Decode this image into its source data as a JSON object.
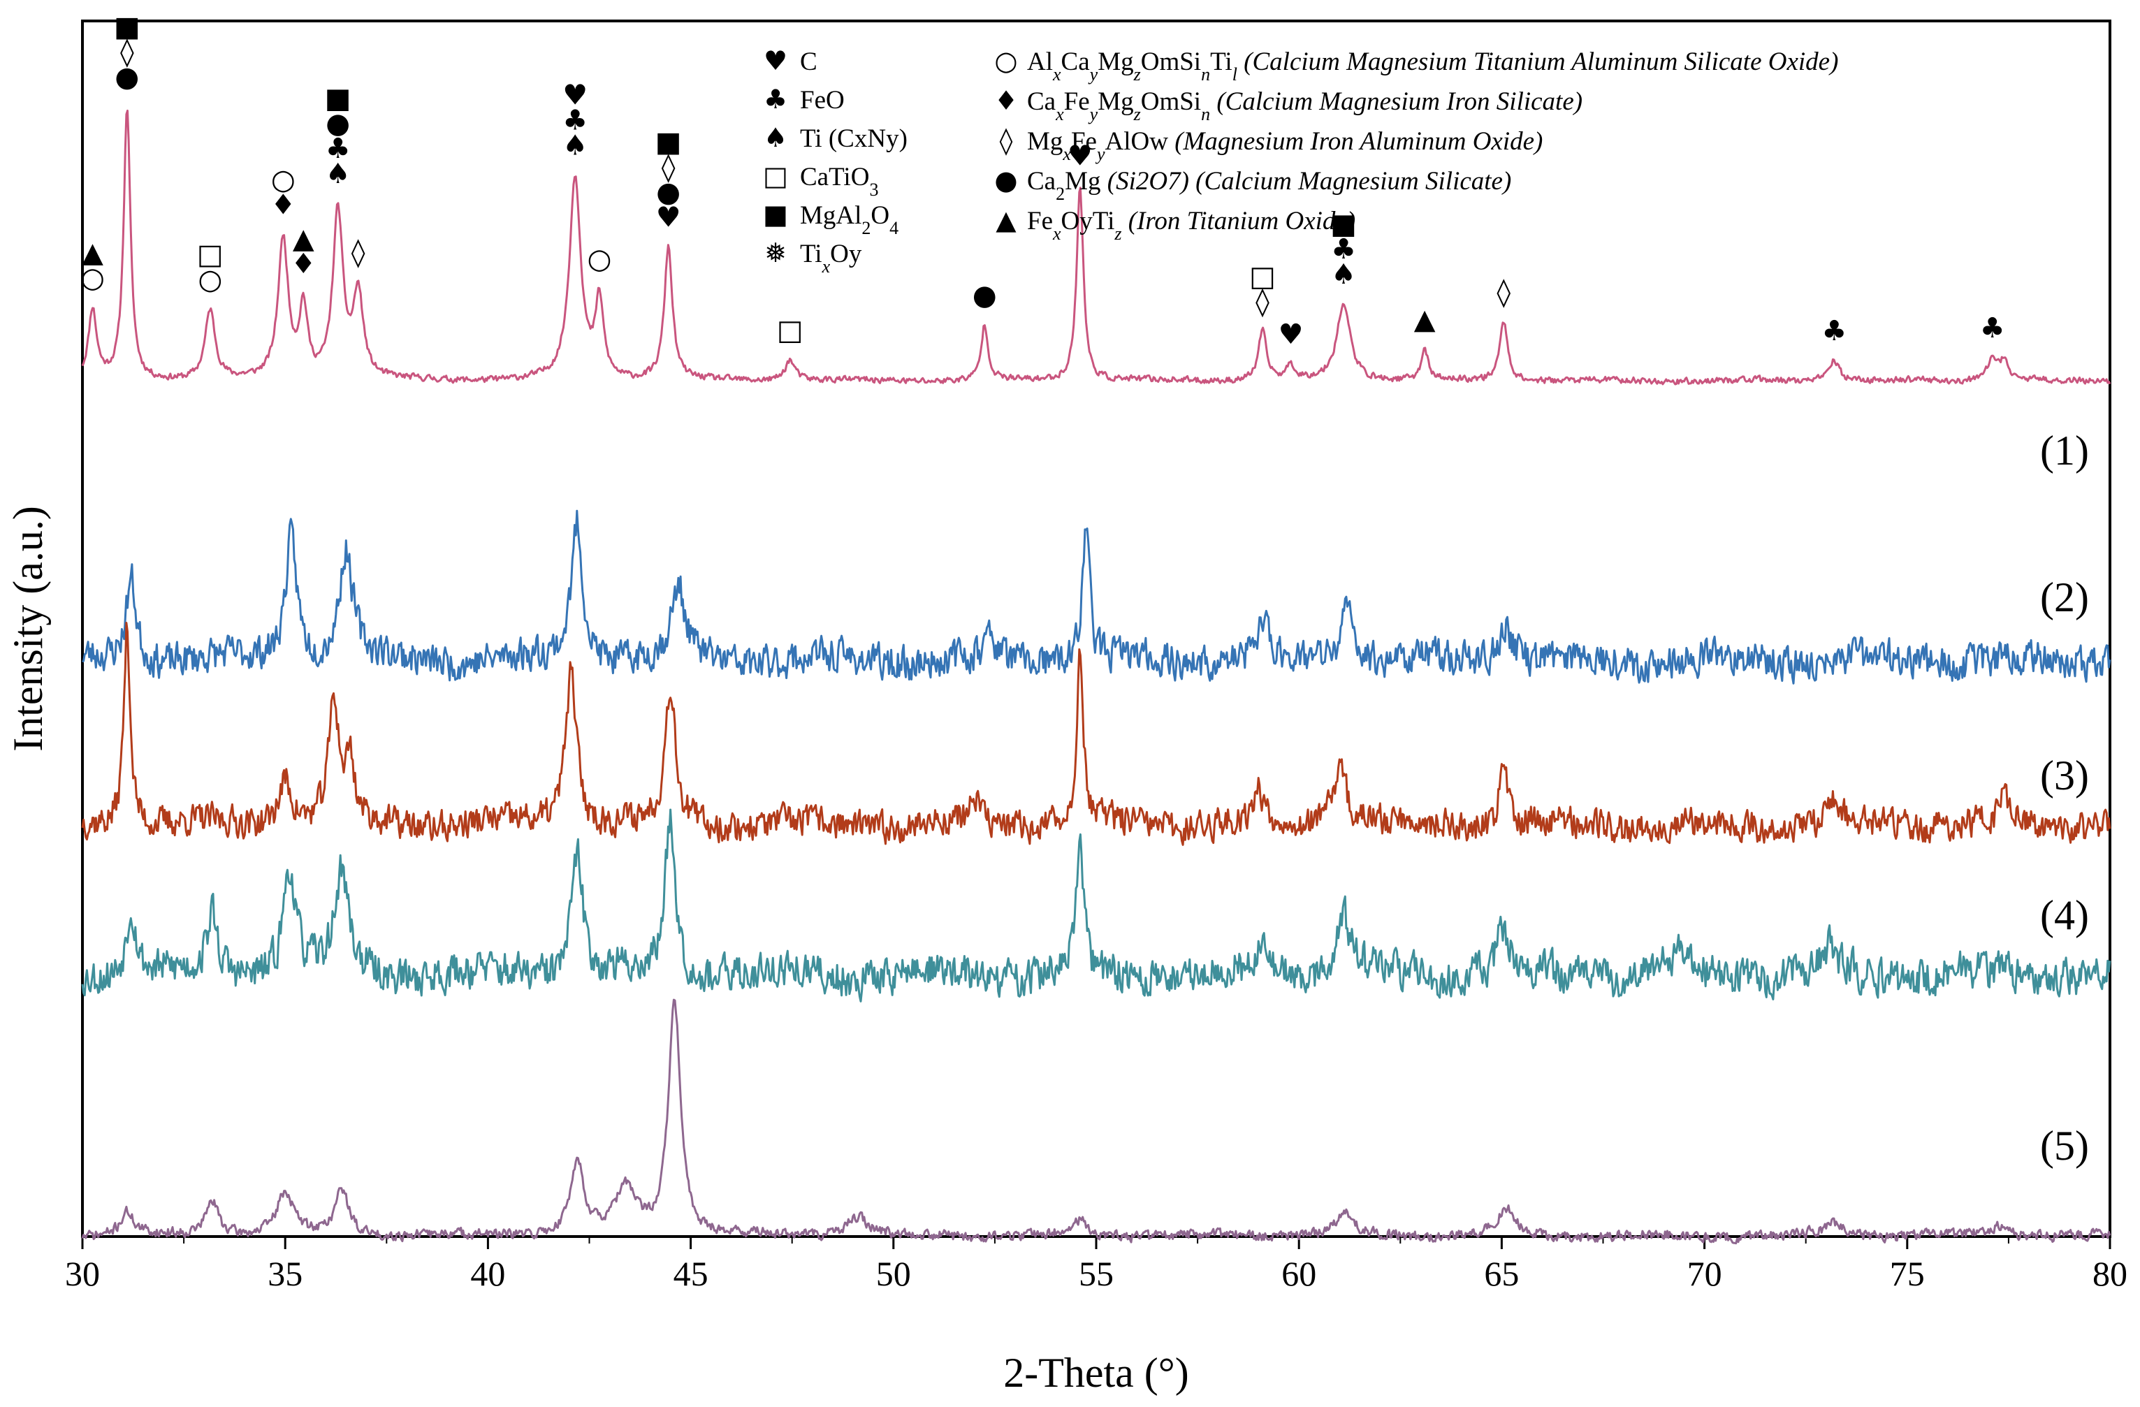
{
  "chart_data": {
    "type": "line",
    "title": "",
    "xlabel": "2-Theta (°)",
    "ylabel": "Intensity (a.u.)",
    "xlim": [
      30,
      80
    ],
    "xticks": [
      30,
      35,
      40,
      45,
      50,
      55,
      60,
      65,
      70,
      75,
      80
    ],
    "grid": false,
    "series": [
      {
        "name": "(1)",
        "color": "#c9557e",
        "baseline": 1.85,
        "noise": 0.04,
        "seed": 11,
        "peaks": [
          [
            30.25,
            1.0,
            0.12
          ],
          [
            31.1,
            3.9,
            0.1
          ],
          [
            33.15,
            1.0,
            0.15
          ],
          [
            34.95,
            2.0,
            0.15
          ],
          [
            35.45,
            1.0,
            0.12
          ],
          [
            36.3,
            2.4,
            0.15
          ],
          [
            36.8,
            1.2,
            0.15
          ],
          [
            42.15,
            2.9,
            0.17
          ],
          [
            42.75,
            1.1,
            0.12
          ],
          [
            44.45,
            1.9,
            0.12
          ],
          [
            47.45,
            0.3,
            0.15
          ],
          [
            52.25,
            0.8,
            0.1
          ],
          [
            54.6,
            2.8,
            0.1
          ],
          [
            59.1,
            0.7,
            0.12
          ],
          [
            59.8,
            0.2,
            0.12
          ],
          [
            61.1,
            1.1,
            0.2
          ],
          [
            63.1,
            0.45,
            0.1
          ],
          [
            65.05,
            0.85,
            0.12
          ],
          [
            73.2,
            0.3,
            0.15
          ],
          [
            77.1,
            0.3,
            0.15
          ],
          [
            77.4,
            0.3,
            0.12
          ]
        ]
      },
      {
        "name": "(2)",
        "color": "#3574b5",
        "baseline": 0.0,
        "noise": 0.2,
        "seed": 23,
        "peaks": [
          [
            31.2,
            1.1,
            0.15
          ],
          [
            35.15,
            1.6,
            0.18
          ],
          [
            36.5,
            1.4,
            0.2
          ],
          [
            42.2,
            1.8,
            0.17
          ],
          [
            44.7,
            0.9,
            0.2
          ],
          [
            52.4,
            0.3,
            0.15
          ],
          [
            54.75,
            1.9,
            0.1
          ],
          [
            59.1,
            0.5,
            0.15
          ],
          [
            61.2,
            0.7,
            0.2
          ],
          [
            65.1,
            0.5,
            0.2
          ]
        ]
      },
      {
        "name": "(3)",
        "color": "#b23c1a",
        "baseline": 0.0,
        "noise": 0.18,
        "seed": 37,
        "peaks": [
          [
            31.1,
            2.6,
            0.1
          ],
          [
            35.0,
            0.6,
            0.2
          ],
          [
            36.2,
            1.6,
            0.15
          ],
          [
            36.6,
            0.8,
            0.12
          ],
          [
            42.05,
            2.0,
            0.17
          ],
          [
            44.5,
            1.8,
            0.15
          ],
          [
            52.0,
            0.3,
            0.15
          ],
          [
            54.6,
            2.1,
            0.1
          ],
          [
            59.0,
            0.4,
            0.15
          ],
          [
            61.0,
            0.8,
            0.2
          ],
          [
            65.05,
            0.8,
            0.12
          ],
          [
            73.2,
            0.3,
            0.15
          ],
          [
            77.4,
            0.3,
            0.15
          ]
        ]
      },
      {
        "name": "(4)",
        "color": "#3f8f9a",
        "baseline": 0.0,
        "noise": 0.22,
        "seed": 53,
        "peaks": [
          [
            31.2,
            0.9,
            0.15
          ],
          [
            33.2,
            0.8,
            0.15
          ],
          [
            35.1,
            1.4,
            0.18
          ],
          [
            36.4,
            1.3,
            0.2
          ],
          [
            42.2,
            1.6,
            0.17
          ],
          [
            44.5,
            2.1,
            0.15
          ],
          [
            54.6,
            1.7,
            0.1
          ],
          [
            59.1,
            0.5,
            0.15
          ],
          [
            61.1,
            0.8,
            0.2
          ],
          [
            65.0,
            0.5,
            0.2
          ],
          [
            69.4,
            0.3,
            0.2
          ],
          [
            73.1,
            0.3,
            0.2
          ]
        ]
      },
      {
        "name": "(5)",
        "color": "#8e678f",
        "baseline": -3.4,
        "noise": 0.06,
        "seed": 71,
        "peaks": [
          [
            31.1,
            0.3,
            0.2
          ],
          [
            33.2,
            0.45,
            0.2
          ],
          [
            35.0,
            0.55,
            0.25
          ],
          [
            36.4,
            0.6,
            0.2
          ],
          [
            42.2,
            0.95,
            0.2
          ],
          [
            43.4,
            0.6,
            0.3
          ],
          [
            44.6,
            3.05,
            0.18
          ],
          [
            49.1,
            0.25,
            0.3
          ],
          [
            54.6,
            0.2,
            0.2
          ],
          [
            61.1,
            0.3,
            0.25
          ],
          [
            65.1,
            0.35,
            0.25
          ],
          [
            73.2,
            0.15,
            0.3
          ],
          [
            77.2,
            0.12,
            0.3
          ]
        ]
      }
    ],
    "legend_left": [
      {
        "symbol": "♥",
        "label": "C"
      },
      {
        "symbol": "♣",
        "label": "FeO"
      },
      {
        "symbol": "♠",
        "label": "Ti (CxNy)"
      },
      {
        "symbol": "□",
        "label": "CaTiO3"
      },
      {
        "symbol": "■",
        "label": "MgAl2O4"
      },
      {
        "symbol": "❅",
        "label": "TixOy"
      }
    ],
    "legend_right": [
      {
        "symbol": "○",
        "label": "AlxCayMgzOmSinTil (Calcium Magnesium Titanium Aluminum Silicate Oxide)"
      },
      {
        "symbol": "♦",
        "label": "CaxFeyMgzOmSin (Calcium Magnesium Iron Silicate)"
      },
      {
        "symbol": "◊",
        "label": "MgxFeyAlOw (Magnesium Iron Aluminum Oxide)"
      },
      {
        "symbol": "●",
        "label": "Ca2Mg (Si2O7) (Calcium Magnesium Silicate)"
      },
      {
        "symbol": "▲",
        "label": "FexOyTiz (Iron Titanium Oxide)"
      }
    ],
    "peak_annotations": [
      {
        "x": 30.25,
        "symbols": [
          "▲",
          "○"
        ]
      },
      {
        "x": 31.1,
        "symbols": [
          "■",
          "◊",
          "●"
        ]
      },
      {
        "x": 33.15,
        "symbols": [
          "□",
          "○"
        ]
      },
      {
        "x": 34.95,
        "symbols": [
          "○",
          "♦"
        ]
      },
      {
        "x": 35.45,
        "symbols": [
          "▲",
          "♦"
        ]
      },
      {
        "x": 36.3,
        "symbols": [
          "■",
          "●",
          "♣",
          "♠"
        ]
      },
      {
        "x": 36.8,
        "symbols": [
          "◊"
        ]
      },
      {
        "x": 42.15,
        "symbols": [
          "♥",
          "♣",
          "♠"
        ]
      },
      {
        "x": 42.75,
        "symbols": [
          "○"
        ]
      },
      {
        "x": 44.45,
        "symbols": [
          "■",
          "◊",
          "●",
          "♥"
        ]
      },
      {
        "x": 47.45,
        "symbols": [
          "□"
        ]
      },
      {
        "x": 52.25,
        "symbols": [
          "●"
        ]
      },
      {
        "x": 54.6,
        "symbols": [
          "♥"
        ]
      },
      {
        "x": 59.1,
        "symbols": [
          "□",
          "◊"
        ]
      },
      {
        "x": 59.8,
        "symbols": [
          "♥"
        ]
      },
      {
        "x": 61.1,
        "symbols": [
          "■",
          "♣",
          "♠"
        ]
      },
      {
        "x": 63.1,
        "symbols": [
          "▲"
        ]
      },
      {
        "x": 65.05,
        "symbols": [
          "◊"
        ]
      },
      {
        "x": 73.2,
        "symbols": [
          "♣"
        ]
      },
      {
        "x": 77.1,
        "symbols": [
          "♣"
        ]
      }
    ]
  }
}
